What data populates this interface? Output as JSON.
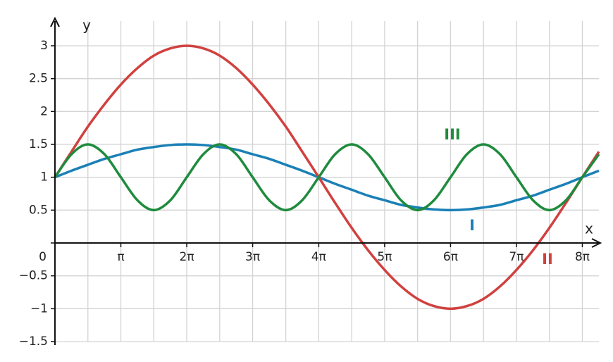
{
  "chart_data": {
    "type": "line",
    "x_label": "x",
    "y_label": "y",
    "x": [
      0,
      0.79,
      1.57,
      2.36,
      3.14,
      3.93,
      4.71,
      5.5,
      6.28,
      7.07,
      7.85,
      8.64,
      9.42,
      10.21,
      11,
      11.78,
      12.57,
      13.35,
      14.14,
      14.92,
      15.71,
      16.49,
      17.28,
      18.06,
      18.85,
      19.63,
      20.42,
      21.21,
      21.99,
      22.78,
      23.56,
      24.35,
      25.13,
      25.92
    ],
    "series": [
      {
        "name": "I",
        "color": "#1a80b6",
        "values": [
          1,
          1.1,
          1.19,
          1.28,
          1.35,
          1.42,
          1.46,
          1.49,
          1.5,
          1.49,
          1.46,
          1.42,
          1.35,
          1.28,
          1.19,
          1.1,
          1,
          0.9,
          0.81,
          0.72,
          0.65,
          0.58,
          0.54,
          0.51,
          0.5,
          0.51,
          0.54,
          0.58,
          0.65,
          0.72,
          0.81,
          0.9,
          1,
          1.1
        ]
      },
      {
        "name": "II",
        "color": "#d0413f",
        "values": [
          1,
          1.39,
          1.77,
          2.11,
          2.41,
          2.66,
          2.85,
          2.96,
          3,
          2.96,
          2.85,
          2.66,
          2.41,
          2.11,
          1.77,
          1.39,
          1,
          0.61,
          0.23,
          -0.11,
          -0.41,
          -0.66,
          -0.85,
          -0.96,
          -1,
          -0.96,
          -0.85,
          -0.66,
          -0.41,
          -0.11,
          0.23,
          0.61,
          1,
          1.39
        ]
      },
      {
        "name": "III",
        "color": "#1f8b3d",
        "values": [
          1,
          1.35,
          1.5,
          1.35,
          1,
          0.65,
          0.5,
          0.65,
          1,
          1.35,
          1.5,
          1.35,
          1,
          0.65,
          0.5,
          0.65,
          1,
          1.35,
          1.5,
          1.35,
          1,
          0.65,
          0.5,
          0.65,
          1,
          1.35,
          1.5,
          1.35,
          1,
          0.65,
          0.5,
          0.65,
          1,
          1.35
        ]
      }
    ],
    "xlim": [
      0,
      25.92
    ],
    "xticks": [
      {
        "value": 3.14,
        "label": "π"
      },
      {
        "value": 6.28,
        "label": "2π"
      },
      {
        "value": 9.42,
        "label": "3π"
      },
      {
        "value": 12.57,
        "label": "4π"
      },
      {
        "value": 15.71,
        "label": "5π"
      },
      {
        "value": 18.85,
        "label": "6π"
      },
      {
        "value": 21.99,
        "label": "7π"
      },
      {
        "value": 25.13,
        "label": "8π"
      }
    ],
    "minor_xticks": [
      1.57,
      4.71,
      7.85,
      11,
      14.14,
      17.28,
      20.42,
      23.56
    ],
    "ylim": [
      -1.5,
      3.3
    ],
    "yticks": [
      {
        "value": -1.5,
        "label": "−1.5"
      },
      {
        "value": -1,
        "label": "−1"
      },
      {
        "value": -0.5,
        "label": "−0.5"
      },
      0,
      0.5,
      1,
      1.5,
      2,
      2.5,
      3
    ],
    "grid": true
  }
}
